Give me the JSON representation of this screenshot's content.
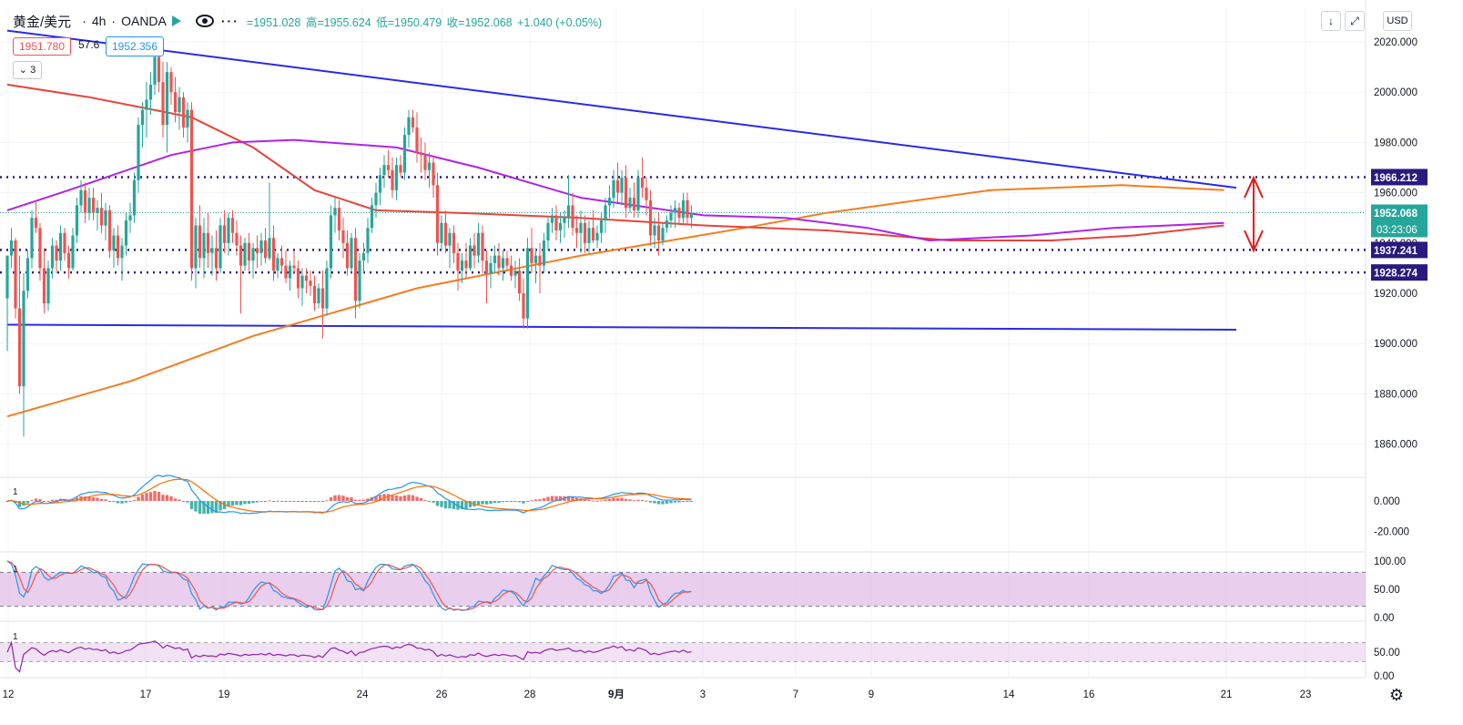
{
  "header": {
    "symbol": "黄金/美元",
    "interval": "4h",
    "exchange": "OANDA",
    "more": "···",
    "ohlc": {
      "open": "=1951.028",
      "high": "高=1955.624",
      "low": "低=1950.479",
      "close": "收=1952.068",
      "change": "+1.040 (+0.05%)"
    }
  },
  "legend": {
    "ma_red_value": "1951.780",
    "ma_aux_value": "57.6",
    "ma_blue_value": "1952.356",
    "collapse_label": "3"
  },
  "toolbar": {
    "down_icon": "↓",
    "expand_icon": "⤢",
    "currency": "USD",
    "settings_icon": "⚙"
  },
  "colors": {
    "up": "#26a69a",
    "down": "#ef5350",
    "trendline": "#2a2ae6",
    "level": "#2a1a7e",
    "ma_orange": "#f57c1f",
    "ma_red": "#e8423a",
    "ma_purple": "#b023e8",
    "macd_line": "#2196f3",
    "signal_line": "#ff6d00",
    "stoch_k": "#2196f3",
    "stoch_d": "#ef5350",
    "rsi": "#8e24aa",
    "band": "#e1bee7",
    "price_tag": "#26a69a",
    "arrow": "#e8191a"
  },
  "chart_data": {
    "type": "candlestick",
    "title": "黄金/美元 · 4h · OANDA",
    "x_labels": [
      "12",
      "17",
      "19",
      "24",
      "26",
      "28",
      "9月",
      "3",
      "7",
      "9",
      "14",
      "16",
      "21",
      "23"
    ],
    "y_ticks": [
      1860,
      1880,
      1900,
      1920,
      1940,
      1960,
      1980,
      2000,
      2020
    ],
    "y_tick_labels": [
      "1860.000",
      "1880.000",
      "1900.000",
      "1920.000",
      "1940.000",
      "1960.000",
      "1980.000",
      "2000.000",
      "2020.000"
    ],
    "ylim": [
      1845,
      2025
    ],
    "key_levels": [
      {
        "label": "1966.212",
        "value": 1966.212
      },
      {
        "label": "1937.241",
        "value": 1937.241
      },
      {
        "label": "1928.274",
        "value": 1928.274
      }
    ],
    "last_price": {
      "label": "1952.068",
      "value": 1952.068,
      "countdown": "03:23:06"
    },
    "trendlines": [
      {
        "name": "upper",
        "from": {
          "bar": 0,
          "price": 2024.5
        },
        "to": {
          "bar": 300,
          "price": 1962
        }
      },
      {
        "name": "lower",
        "from": {
          "bar": 0,
          "price": 1907.5
        },
        "to": {
          "bar": 300,
          "price": 1905.5
        }
      }
    ],
    "range_arrow": {
      "from": 1966,
      "to": 1937
    },
    "candles": [
      [
        1918,
        1935,
        1897,
        1935
      ],
      [
        1935,
        1946,
        1930,
        1941
      ],
      [
        1941,
        1942,
        1910,
        1914
      ],
      [
        1914,
        1935,
        1880,
        1883
      ],
      [
        1883,
        1928,
        1863,
        1921
      ],
      [
        1921,
        1937,
        1918,
        1934
      ],
      [
        1934,
        1953,
        1930,
        1950
      ],
      [
        1950,
        1957,
        1944,
        1946
      ],
      [
        1946,
        1948,
        1925,
        1930
      ],
      [
        1930,
        1938,
        1912,
        1916
      ],
      [
        1916,
        1933,
        1913,
        1930
      ],
      [
        1930,
        1942,
        1926,
        1939
      ],
      [
        1939,
        1941,
        1928,
        1933
      ],
      [
        1933,
        1947,
        1929,
        1944
      ],
      [
        1944,
        1946,
        1933,
        1936
      ],
      [
        1936,
        1939,
        1926,
        1930
      ],
      [
        1930,
        1946,
        1929,
        1943
      ],
      [
        1943,
        1958,
        1940,
        1955
      ],
      [
        1955,
        1965,
        1952,
        1961
      ],
      [
        1961,
        1964,
        1948,
        1952
      ],
      [
        1952,
        1962,
        1949,
        1958
      ],
      [
        1958,
        1962,
        1949,
        1952
      ],
      [
        1952,
        1957,
        1945,
        1954
      ],
      [
        1954,
        1960,
        1944,
        1947
      ],
      [
        1947,
        1956,
        1941,
        1953
      ],
      [
        1953,
        1955,
        1934,
        1937
      ],
      [
        1937,
        1946,
        1930,
        1943
      ],
      [
        1943,
        1947,
        1931,
        1934
      ],
      [
        1934,
        1942,
        1925,
        1939
      ],
      [
        1939,
        1952,
        1935,
        1949
      ],
      [
        1949,
        1956,
        1944,
        1951
      ],
      [
        1951,
        1968,
        1948,
        1965
      ],
      [
        1965,
        1990,
        1960,
        1987
      ],
      [
        1987,
        1996,
        1978,
        1993
      ],
      [
        1993,
        2004,
        1982,
        1997
      ],
      [
        1997,
        2008,
        1991,
        2003
      ],
      [
        2003,
        2018,
        1999,
        2014
      ],
      [
        2014,
        2017,
        2000,
        2004
      ],
      [
        2004,
        2012,
        1982,
        1987
      ],
      [
        1987,
        2012,
        1976,
        2008
      ],
      [
        2008,
        2010,
        1995,
        2000
      ],
      [
        2000,
        2006,
        1988,
        1992
      ],
      [
        1992,
        2002,
        1985,
        1998
      ],
      [
        1998,
        2000,
        1982,
        1986
      ],
      [
        1986,
        1996,
        1980,
        1993
      ],
      [
        1993,
        1996,
        1925,
        1930
      ],
      [
        1930,
        1950,
        1922,
        1947
      ],
      [
        1947,
        1955,
        1930,
        1934
      ],
      [
        1934,
        1950,
        1926,
        1944
      ],
      [
        1944,
        1952,
        1930,
        1936
      ],
      [
        1936,
        1943,
        1927,
        1938
      ],
      [
        1938,
        1945,
        1925,
        1930
      ],
      [
        1930,
        1950,
        1928,
        1947
      ],
      [
        1947,
        1953,
        1936,
        1940
      ],
      [
        1940,
        1952,
        1935,
        1950
      ],
      [
        1950,
        1953,
        1940,
        1944
      ],
      [
        1944,
        1949,
        1935,
        1939
      ],
      [
        1939,
        1943,
        1912,
        1931
      ],
      [
        1931,
        1942,
        1929,
        1940
      ],
      [
        1940,
        1944,
        1929,
        1933
      ],
      [
        1933,
        1940,
        1926,
        1938
      ],
      [
        1938,
        1943,
        1930,
        1936
      ],
      [
        1936,
        1944,
        1931,
        1941
      ],
      [
        1941,
        1946,
        1932,
        1934
      ],
      [
        1934,
        1964,
        1933,
        1942
      ],
      [
        1942,
        1947,
        1925,
        1929
      ],
      [
        1929,
        1936,
        1926,
        1934
      ],
      [
        1934,
        1939,
        1928,
        1931
      ],
      [
        1931,
        1937,
        1924,
        1926
      ],
      [
        1926,
        1933,
        1921,
        1931
      ],
      [
        1931,
        1937,
        1928,
        1930
      ],
      [
        1930,
        1933,
        1918,
        1922
      ],
      [
        1922,
        1930,
        1915,
        1927
      ],
      [
        1927,
        1930,
        1920,
        1925
      ],
      [
        1925,
        1929,
        1919,
        1923
      ],
      [
        1923,
        1927,
        1913,
        1916
      ],
      [
        1916,
        1924,
        1914,
        1922
      ],
      [
        1922,
        1929,
        1902,
        1914
      ],
      [
        1914,
        1933,
        1911,
        1930
      ],
      [
        1930,
        1955,
        1926,
        1951
      ],
      [
        1951,
        1958,
        1944,
        1954
      ],
      [
        1954,
        1957,
        1941,
        1945
      ],
      [
        1945,
        1950,
        1934,
        1940
      ],
      [
        1940,
        1945,
        1927,
        1930
      ],
      [
        1930,
        1944,
        1928,
        1942
      ],
      [
        1942,
        1946,
        1910,
        1917
      ],
      [
        1917,
        1936,
        1914,
        1933
      ],
      [
        1933,
        1940,
        1928,
        1936
      ],
      [
        1936,
        1950,
        1932,
        1946
      ],
      [
        1946,
        1958,
        1944,
        1955
      ],
      [
        1955,
        1964,
        1950,
        1960
      ],
      [
        1960,
        1970,
        1955,
        1967
      ],
      [
        1967,
        1975,
        1962,
        1971
      ],
      [
        1971,
        1977,
        1966,
        1969
      ],
      [
        1969,
        1974,
        1958,
        1961
      ],
      [
        1961,
        1974,
        1957,
        1971
      ],
      [
        1971,
        1975,
        1966,
        1968
      ],
      [
        1968,
        1986,
        1965,
        1983
      ],
      [
        1983,
        1993,
        1978,
        1990
      ],
      [
        1990,
        1993,
        1984,
        1986
      ],
      [
        1986,
        1992,
        1972,
        1976
      ],
      [
        1976,
        1982,
        1968,
        1975
      ],
      [
        1975,
        1980,
        1965,
        1969
      ],
      [
        1969,
        1976,
        1962,
        1972
      ],
      [
        1972,
        1975,
        1958,
        1963
      ],
      [
        1963,
        1968,
        1935,
        1940
      ],
      [
        1940,
        1951,
        1937,
        1948
      ],
      [
        1948,
        1953,
        1936,
        1939
      ],
      [
        1939,
        1946,
        1930,
        1944
      ],
      [
        1944,
        1947,
        1932,
        1936
      ],
      [
        1936,
        1940,
        1921,
        1929
      ],
      [
        1929,
        1936,
        1924,
        1933
      ],
      [
        1933,
        1940,
        1926,
        1930
      ],
      [
        1930,
        1942,
        1929,
        1939
      ],
      [
        1939,
        1944,
        1930,
        1935
      ],
      [
        1935,
        1948,
        1932,
        1944
      ],
      [
        1944,
        1947,
        1928,
        1933
      ],
      [
        1933,
        1937,
        1916,
        1928
      ],
      [
        1928,
        1935,
        1922,
        1932
      ],
      [
        1932,
        1939,
        1928,
        1935
      ],
      [
        1935,
        1940,
        1927,
        1930
      ],
      [
        1930,
        1937,
        1925,
        1934
      ],
      [
        1934,
        1937,
        1929,
        1931
      ],
      [
        1931,
        1935,
        1925,
        1927
      ],
      [
        1927,
        1933,
        1922,
        1929
      ],
      [
        1929,
        1934,
        1917,
        1920
      ],
      [
        1920,
        1926,
        1906,
        1910
      ],
      [
        1910,
        1942,
        1906,
        1938
      ],
      [
        1938,
        1946,
        1928,
        1932
      ],
      [
        1932,
        1938,
        1924,
        1935
      ],
      [
        1935,
        1940,
        1920,
        1931
      ],
      [
        1931,
        1944,
        1928,
        1941
      ],
      [
        1941,
        1950,
        1937,
        1948
      ],
      [
        1948,
        1954,
        1944,
        1951
      ],
      [
        1951,
        1955,
        1941,
        1945
      ],
      [
        1945,
        1952,
        1940,
        1948
      ],
      [
        1948,
        1953,
        1942,
        1950
      ],
      [
        1950,
        1967,
        1946,
        1955
      ],
      [
        1955,
        1960,
        1943,
        1946
      ],
      [
        1946,
        1951,
        1938,
        1944
      ],
      [
        1944,
        1953,
        1936,
        1948
      ],
      [
        1948,
        1951,
        1936,
        1940
      ],
      [
        1940,
        1949,
        1936,
        1946
      ],
      [
        1946,
        1953,
        1940,
        1941
      ],
      [
        1941,
        1947,
        1938,
        1944
      ],
      [
        1944,
        1952,
        1940,
        1949
      ],
      [
        1949,
        1958,
        1944,
        1955
      ],
      [
        1955,
        1963,
        1950,
        1958
      ],
      [
        1958,
        1969,
        1954,
        1965
      ],
      [
        1965,
        1972,
        1956,
        1960
      ],
      [
        1960,
        1969,
        1955,
        1966
      ],
      [
        1966,
        1971,
        1950,
        1954
      ],
      [
        1954,
        1962,
        1952,
        1958
      ],
      [
        1958,
        1964,
        1950,
        1953
      ],
      [
        1953,
        1969,
        1950,
        1966
      ],
      [
        1966,
        1974,
        1958,
        1962
      ],
      [
        1962,
        1966,
        1951,
        1957
      ],
      [
        1957,
        1961,
        1939,
        1943
      ],
      [
        1943,
        1950,
        1938,
        1947
      ],
      [
        1947,
        1952,
        1935,
        1941
      ],
      [
        1941,
        1948,
        1939,
        1946
      ],
      [
        1946,
        1951,
        1944,
        1949
      ],
      [
        1949,
        1955,
        1946,
        1952
      ],
      [
        1952,
        1957,
        1946,
        1954
      ],
      [
        1954,
        1956,
        1948,
        1950
      ],
      [
        1950,
        1960,
        1948,
        1957
      ],
      [
        1957,
        1960,
        1947,
        1950
      ],
      [
        1950,
        1955,
        1946,
        1952
      ]
    ],
    "moving_averages": [
      {
        "color": "ma_orange",
        "points": [
          [
            0,
            1871
          ],
          [
            30,
            1885
          ],
          [
            60,
            1903
          ],
          [
            100,
            1922
          ],
          [
            140,
            1935
          ],
          [
            180,
            1946
          ],
          [
            200,
            1952
          ],
          [
            240,
            1961
          ],
          [
            272,
            1963
          ],
          [
            297,
            1961
          ]
        ]
      },
      {
        "color": "ma_red",
        "points": [
          [
            0,
            2003
          ],
          [
            20,
            1998
          ],
          [
            45,
            1990
          ],
          [
            60,
            1978
          ],
          [
            75,
            1961
          ],
          [
            90,
            1953
          ],
          [
            110,
            1952
          ],
          [
            140,
            1950
          ],
          [
            170,
            1947
          ],
          [
            200,
            1945
          ],
          [
            230,
            1941
          ],
          [
            255,
            1941
          ],
          [
            275,
            1943
          ],
          [
            297,
            1947
          ]
        ]
      },
      {
        "color": "ma_purple",
        "points": [
          [
            0,
            1953
          ],
          [
            15,
            1961
          ],
          [
            40,
            1975
          ],
          [
            55,
            1980
          ],
          [
            70,
            1981
          ],
          [
            95,
            1978
          ],
          [
            115,
            1970
          ],
          [
            140,
            1958
          ],
          [
            170,
            1951
          ],
          [
            190,
            1950
          ],
          [
            210,
            1946
          ],
          [
            225,
            1941
          ],
          [
            250,
            1943
          ],
          [
            270,
            1946
          ],
          [
            297,
            1948
          ]
        ]
      }
    ],
    "indicators": {
      "macd": {
        "pane_label": "1",
        "y_tick_labels": [
          "0.000",
          "-20.000"
        ],
        "ylim": [
          -30,
          12
        ]
      },
      "stoch": {
        "pane_label": "1",
        "y_tick_labels": [
          "100.00",
          "50.00",
          "0.00"
        ],
        "ylim": [
          0,
          100
        ],
        "band": [
          20,
          80
        ]
      },
      "rsi": {
        "pane_label": "1",
        "y_tick_labels": [
          "50.00",
          "0.00"
        ],
        "ylim": [
          0,
          100
        ],
        "band": [
          30,
          70
        ]
      }
    }
  }
}
